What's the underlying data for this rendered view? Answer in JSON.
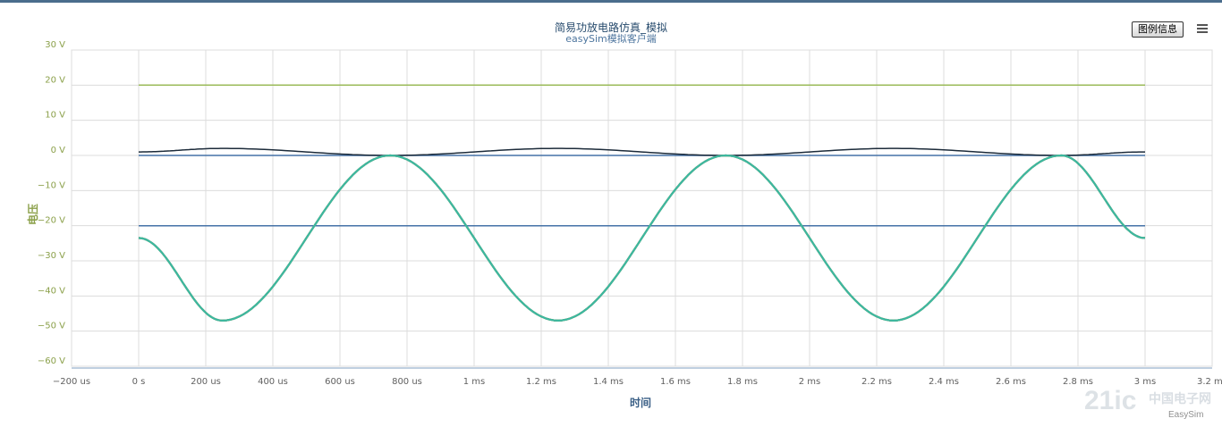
{
  "chart_data": {
    "type": "line",
    "title": "简易功放电路仿真_模拟",
    "subtitle": "easySim模拟客户端",
    "xlabel": "时间",
    "ylabel": "电压",
    "xlim": [
      -0.0002,
      0.0032
    ],
    "ylim": [
      -60,
      30
    ],
    "x_ticks": [
      -0.0002,
      0,
      0.0002,
      0.0004,
      0.0006,
      0.0008,
      0.001,
      0.0012,
      0.0014,
      0.0016,
      0.0018,
      0.002,
      0.0022,
      0.0024,
      0.0026,
      0.0028,
      0.003,
      0.0032
    ],
    "x_tick_labels": [
      "−200 us",
      "0 s",
      "200 us",
      "400 us",
      "600 us",
      "800 us",
      "1 ms",
      "1.2 ms",
      "1.4 ms",
      "1.6 ms",
      "1.8 ms",
      "2 ms",
      "2.2 ms",
      "2.4 ms",
      "2.6 ms",
      "2.8 ms",
      "3 ms",
      "3.2 ms"
    ],
    "y_ticks": [
      30,
      20,
      10,
      0,
      -10,
      -20,
      -30,
      -40,
      -50,
      -60
    ],
    "y_tick_labels": [
      "30 V",
      "20 V",
      "10 V",
      "0 V",
      "−10 V",
      "−20 V",
      "−30 V",
      "−40 V",
      "−50 V",
      "−60 V"
    ],
    "grid": true,
    "series": [
      {
        "color": "#9bbb59",
        "x": [
          0,
          0.003
        ],
        "values": [
          20,
          20
        ]
      },
      {
        "color": "#4572a7",
        "x": [
          0,
          0.003
        ],
        "values": [
          0,
          0
        ]
      },
      {
        "color": "#4572a7",
        "x": [
          0,
          0.003
        ],
        "values": [
          -20,
          -20
        ]
      },
      {
        "color": "#1c2b3a",
        "x": [
          0,
          0.00025,
          0.00075,
          0.00125,
          0.00175,
          0.00225,
          0.00275,
          0.003
        ],
        "values": [
          1,
          2,
          0,
          2,
          0,
          2,
          0,
          1
        ]
      },
      {
        "color": "#aa4643",
        "x": [
          0,
          0.00025,
          0.00075,
          0.00125,
          0.00175,
          0.00225,
          0.00275,
          0.003
        ],
        "values": [
          -23.5,
          -47,
          0,
          -47,
          0,
          -47,
          0,
          -23.5
        ]
      },
      {
        "color": "#89a54e",
        "x": [
          0,
          0.00025,
          0.00075,
          0.00125,
          0.00175,
          0.00225,
          0.00275,
          0.003
        ],
        "values": [
          -23.5,
          -47,
          0,
          -47,
          0,
          -47,
          0,
          -23.5
        ]
      },
      {
        "color": "#3cb8a0",
        "x": [
          0,
          0.00025,
          0.00075,
          0.00125,
          0.00175,
          0.00225,
          0.00275,
          0.003
        ],
        "values": [
          -23.5,
          -47,
          0,
          -47,
          0,
          -47,
          0,
          -23.5
        ]
      }
    ]
  },
  "ui": {
    "legend_button": "图例信息",
    "credit": "EasySim",
    "watermark": "21ic",
    "watermark_sub": "中国电子网"
  }
}
